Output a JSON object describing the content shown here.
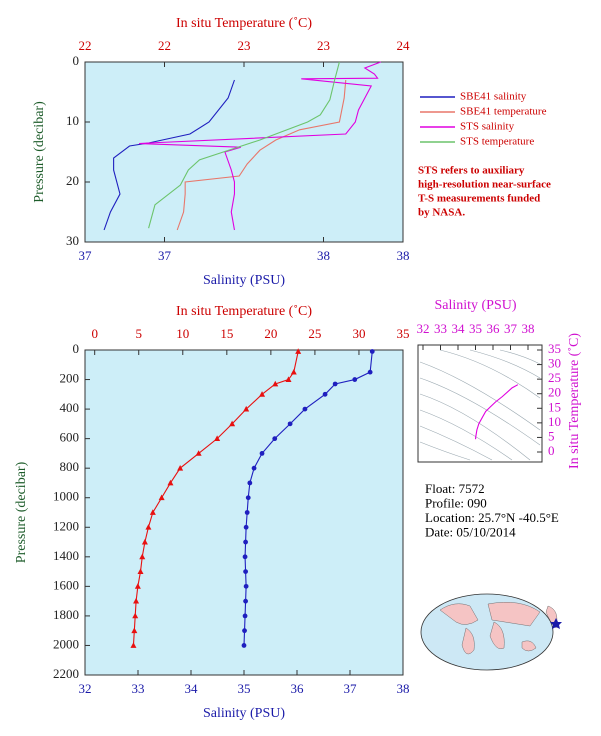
{
  "chart_data": [
    {
      "type": "profile",
      "x_label": "Salinity (PSU)",
      "x2_label": "In situ Temperature (˚C)",
      "y_label": "Pressure (decibar)",
      "xlim": [
        37,
        38
      ],
      "xticks": [
        37,
        {
          "value": 37.25,
          "label": "37"
        },
        {
          "value": 37.75,
          "label": "38"
        },
        38
      ],
      "x2lim": [
        22,
        24
      ],
      "x2ticks": [
        22,
        {
          "value": 22.5,
          "label": "22"
        },
        23,
        {
          "value": 23.5,
          "label": "23"
        },
        24
      ],
      "ylim": [
        0,
        30
      ],
      "yticks": [
        0,
        10,
        20,
        30
      ],
      "series": [
        {
          "name": "SBE41 salinity",
          "color": "#1f1fbf",
          "axis": "x",
          "y": [
            3,
            6,
            10,
            12,
            13.5,
            14,
            16,
            18,
            20,
            22,
            25,
            28
          ],
          "x": [
            37.47,
            37.45,
            37.39,
            37.33,
            37.2,
            37.14,
            37.09,
            37.09,
            37.1,
            37.11,
            37.08,
            37.06
          ]
        },
        {
          "name": "SBE41 temperature",
          "color": "#e8766a",
          "axis": "x2",
          "y": [
            3,
            6,
            10,
            11.3,
            13,
            14.7,
            17,
            19,
            20,
            22,
            25,
            28
          ],
          "x": [
            23.64,
            23.63,
            23.6,
            23.35,
            23.2,
            23.1,
            23.02,
            22.97,
            22.63,
            22.63,
            22.62,
            22.58
          ]
        },
        {
          "name": "STS salinity",
          "color": "#e000e0",
          "axis": "x",
          "y": [
            0,
            1,
            2,
            2.7,
            2.8,
            4,
            6,
            8,
            10,
            12,
            13.5,
            13.6,
            14.2,
            15,
            18,
            20,
            22,
            25,
            28
          ],
          "x": [
            37.93,
            37.88,
            37.91,
            37.92,
            37.68,
            37.9,
            37.88,
            37.86,
            37.85,
            37.82,
            37.2,
            37.17,
            37.49,
            37.44,
            37.46,
            37.47,
            37.47,
            37.46,
            37.47
          ]
        },
        {
          "name": "STS temperature",
          "color": "#6cc46c",
          "axis": "x2",
          "y": [
            0,
            3,
            6.3,
            8.8,
            10,
            13,
            16.3,
            18,
            20.5,
            23.8,
            27.7
          ],
          "x": [
            23.6,
            23.57,
            23.54,
            23.48,
            23.4,
            23.1,
            22.72,
            22.65,
            22.6,
            22.44,
            22.4
          ]
        }
      ],
      "annotation": [
        "STS refers to auxiliary",
        "high-resolution near-surface",
        "T-S measurements funded",
        "by NASA."
      ]
    },
    {
      "type": "profile",
      "x_label": "Salinity (PSU)",
      "x2_label": "In situ Temperature (˚C)",
      "y_label": "Pressure (decibar)",
      "xlim": [
        32,
        38
      ],
      "xticks": [
        32,
        33,
        34,
        35,
        36,
        37,
        38
      ],
      "x2lim": [
        -1.1,
        35
      ],
      "x2ticks": [
        0,
        5,
        10,
        15,
        20,
        25,
        30,
        35
      ],
      "ylim": [
        0,
        2200
      ],
      "yticks": [
        0,
        200,
        400,
        600,
        800,
        1000,
        1200,
        1400,
        1600,
        1800,
        2000,
        2200
      ],
      "series": [
        {
          "color": "#1f1fbf",
          "axis": "x",
          "marker": "circle",
          "y": [
            10,
            150,
            200,
            230,
            300,
            400,
            500,
            600,
            700,
            800,
            900,
            1000,
            1100,
            1200,
            1300,
            1400,
            1500,
            1600,
            1700,
            1800,
            1900,
            2000
          ],
          "x": [
            37.42,
            37.38,
            37.09,
            36.72,
            36.53,
            36.15,
            35.87,
            35.58,
            35.34,
            35.19,
            35.11,
            35.08,
            35.06,
            35.04,
            35.03,
            35.02,
            35.03,
            35.04,
            35.03,
            35.02,
            35.01,
            35.0
          ]
        },
        {
          "color": "#e81010",
          "axis": "x2",
          "marker": "triangle",
          "y": [
            10,
            150,
            200,
            230,
            300,
            400,
            500,
            600,
            700,
            800,
            900,
            1000,
            1100,
            1200,
            1300,
            1400,
            1500,
            1600,
            1700,
            1800,
            1900,
            2000
          ],
          "x": [
            23.1,
            22.6,
            22.0,
            20.5,
            19.0,
            17.2,
            15.6,
            13.9,
            11.8,
            9.7,
            8.6,
            7.6,
            6.6,
            6.1,
            5.7,
            5.4,
            5.2,
            4.9,
            4.7,
            4.6,
            4.5,
            4.4
          ]
        }
      ]
    },
    {
      "type": "line",
      "x_label": "Salinity (PSU)",
      "y_label": "In situ Temperature (˚C)",
      "xlim": [
        32,
        38
      ],
      "xticks": [
        32,
        33,
        34,
        35,
        36,
        37,
        38
      ],
      "ylim": [
        0,
        35
      ],
      "yticks": [
        0,
        5,
        10,
        15,
        20,
        25,
        30,
        35
      ],
      "series": [
        {
          "color": "#e000e0",
          "y": [
            4.4,
            5.4,
            7.6,
            9.7,
            13.9,
            15.6,
            17.2,
            19.0,
            22.0,
            23.1
          ],
          "x": [
            35.0,
            35.02,
            35.08,
            35.19,
            35.58,
            35.87,
            36.15,
            36.53,
            37.09,
            37.42
          ]
        }
      ]
    }
  ],
  "info": [
    "Float:  7572",
    "Profile:  090",
    "Location:  25.7°N  -40.5°E",
    "Date:  05/10/2014"
  ]
}
